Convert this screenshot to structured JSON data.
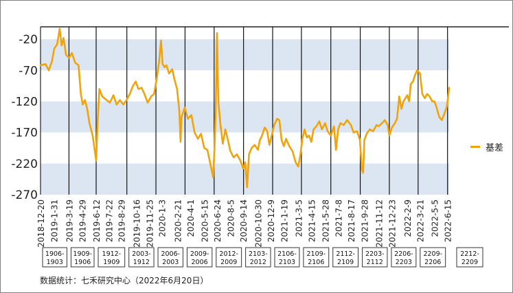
{
  "chart_data": {
    "type": "line",
    "series": [
      {
        "name": "基差",
        "color": "#F0A30A",
        "points": [
          [
            "2018-12-20",
            -62
          ],
          [
            "2019-01-05",
            -60
          ],
          [
            "2019-01-15",
            -70
          ],
          [
            "2019-01-25",
            -55
          ],
          [
            "2019-02-01",
            -35
          ],
          [
            "2019-02-10",
            -28
          ],
          [
            "2019-02-18",
            -3
          ],
          [
            "2019-02-24",
            -30
          ],
          [
            "2019-03-02",
            -18
          ],
          [
            "2019-03-10",
            -45
          ],
          [
            "2019-03-19",
            -50
          ],
          [
            "2019-03-28",
            -42
          ],
          [
            "2019-04-08",
            -58
          ],
          [
            "2019-04-18",
            -62
          ],
          [
            "2019-04-25",
            -108
          ],
          [
            "2019-05-01",
            -125
          ],
          [
            "2019-05-08",
            -118
          ],
          [
            "2019-05-15",
            -132
          ],
          [
            "2019-05-22",
            -155
          ],
          [
            "2019-06-01",
            -175
          ],
          [
            "2019-06-08",
            -200
          ],
          [
            "2019-06-12",
            -215
          ],
          [
            "2019-06-16",
            -158
          ],
          [
            "2019-06-22",
            -100
          ],
          [
            "2019-07-01",
            -112
          ],
          [
            "2019-07-15",
            -118
          ],
          [
            "2019-07-25",
            -122
          ],
          [
            "2019-08-05",
            -110
          ],
          [
            "2019-08-15",
            -125
          ],
          [
            "2019-08-25",
            -118
          ],
          [
            "2019-09-05",
            -125
          ],
          [
            "2019-09-15",
            -118
          ],
          [
            "2019-09-25",
            -108
          ],
          [
            "2019-10-05",
            -95
          ],
          [
            "2019-10-14",
            -88
          ],
          [
            "2019-10-22",
            -100
          ],
          [
            "2019-11-01",
            -98
          ],
          [
            "2019-11-10",
            -108
          ],
          [
            "2019-11-20",
            -122
          ],
          [
            "2019-12-01",
            -112
          ],
          [
            "2019-12-10",
            -108
          ],
          [
            "2019-12-18",
            -85
          ],
          [
            "2019-12-26",
            -55
          ],
          [
            "2020-01-01",
            -22
          ],
          [
            "2020-01-06",
            -60
          ],
          [
            "2020-01-12",
            -65
          ],
          [
            "2020-01-18",
            -62
          ],
          [
            "2020-01-26",
            -75
          ],
          [
            "2020-02-05",
            -68
          ],
          [
            "2020-02-12",
            -85
          ],
          [
            "2020-02-20",
            -100
          ],
          [
            "2020-02-27",
            -135
          ],
          [
            "2020-03-02",
            -185
          ],
          [
            "2020-03-05",
            -145
          ],
          [
            "2020-03-15",
            -130
          ],
          [
            "2020-03-25",
            -148
          ],
          [
            "2020-04-05",
            -142
          ],
          [
            "2020-04-15",
            -170
          ],
          [
            "2020-04-25",
            -180
          ],
          [
            "2020-05-05",
            -172
          ],
          [
            "2020-05-15",
            -195
          ],
          [
            "2020-05-25",
            -198
          ],
          [
            "2020-06-05",
            -225
          ],
          [
            "2020-06-12",
            -242
          ],
          [
            "2020-06-16",
            -196
          ],
          [
            "2020-06-20",
            -135
          ],
          [
            "2020-06-24",
            -10
          ],
          [
            "2020-06-28",
            -120
          ],
          [
            "2020-07-05",
            -158
          ],
          [
            "2020-07-12",
            -188
          ],
          [
            "2020-07-20",
            -165
          ],
          [
            "2020-07-28",
            -182
          ],
          [
            "2020-08-05",
            -200
          ],
          [
            "2020-08-15",
            -210
          ],
          [
            "2020-08-25",
            -205
          ],
          [
            "2020-09-05",
            -215
          ],
          [
            "2020-09-14",
            -228
          ],
          [
            "2020-09-20",
            -218
          ],
          [
            "2020-09-26",
            -258
          ],
          [
            "2020-10-02",
            -205
          ],
          [
            "2020-10-10",
            -195
          ],
          [
            "2020-10-20",
            -190
          ],
          [
            "2020-10-30",
            -198
          ],
          [
            "2020-11-05",
            -182
          ],
          [
            "2020-11-12",
            -175
          ],
          [
            "2020-11-20",
            -162
          ],
          [
            "2020-11-28",
            -168
          ],
          [
            "2020-12-05",
            -190
          ],
          [
            "2020-12-12",
            -175
          ],
          [
            "2020-12-20",
            -158
          ],
          [
            "2020-12-29",
            -148
          ],
          [
            "2021-01-05",
            -150
          ],
          [
            "2021-01-12",
            -182
          ],
          [
            "2021-01-19",
            -192
          ],
          [
            "2021-01-26",
            -180
          ],
          [
            "2021-02-05",
            -192
          ],
          [
            "2021-02-15",
            -200
          ],
          [
            "2021-02-25",
            -218
          ],
          [
            "2021-03-05",
            -225
          ],
          [
            "2021-03-12",
            -205
          ],
          [
            "2021-03-18",
            -180
          ],
          [
            "2021-03-25",
            -165
          ],
          [
            "2021-04-01",
            -178
          ],
          [
            "2021-04-08",
            -175
          ],
          [
            "2021-04-15",
            -185
          ],
          [
            "2021-04-22",
            -165
          ],
          [
            "2021-05-01",
            -160
          ],
          [
            "2021-05-10",
            -152
          ],
          [
            "2021-05-18",
            -165
          ],
          [
            "2021-05-28",
            -155
          ],
          [
            "2021-06-05",
            -168
          ],
          [
            "2021-06-15",
            -175
          ],
          [
            "2021-06-25",
            -160
          ],
          [
            "2021-07-01",
            -198
          ],
          [
            "2021-07-08",
            -165
          ],
          [
            "2021-07-15",
            -155
          ],
          [
            "2021-07-25",
            -158
          ],
          [
            "2021-08-05",
            -150
          ],
          [
            "2021-08-17",
            -158
          ],
          [
            "2021-08-25",
            -170
          ],
          [
            "2021-09-05",
            -168
          ],
          [
            "2021-09-14",
            -182
          ],
          [
            "2021-09-20",
            -230
          ],
          [
            "2021-09-24",
            -235
          ],
          [
            "2021-09-28",
            -182
          ],
          [
            "2021-10-05",
            -172
          ],
          [
            "2021-10-15",
            -165
          ],
          [
            "2021-10-25",
            -168
          ],
          [
            "2021-11-05",
            -158
          ],
          [
            "2021-11-12",
            -160
          ],
          [
            "2021-11-22",
            -155
          ],
          [
            "2021-12-01",
            -150
          ],
          [
            "2021-12-10",
            -158
          ],
          [
            "2021-12-15",
            -175
          ],
          [
            "2021-12-23",
            -162
          ],
          [
            "2022-01-01",
            -155
          ],
          [
            "2022-01-08",
            -148
          ],
          [
            "2022-01-15",
            -112
          ],
          [
            "2022-01-22",
            -132
          ],
          [
            "2022-01-28",
            -120
          ],
          [
            "2022-02-09",
            -110
          ],
          [
            "2022-02-15",
            -120
          ],
          [
            "2022-02-20",
            -92
          ],
          [
            "2022-02-27",
            -88
          ],
          [
            "2022-03-05",
            -78
          ],
          [
            "2022-03-12",
            -70
          ],
          [
            "2022-03-21",
            -75
          ],
          [
            "2022-03-28",
            -108
          ],
          [
            "2022-04-05",
            -115
          ],
          [
            "2022-04-12",
            -108
          ],
          [
            "2022-04-20",
            -112
          ],
          [
            "2022-04-28",
            -120
          ],
          [
            "2022-05-05",
            -120
          ],
          [
            "2022-05-12",
            -130
          ],
          [
            "2022-05-20",
            -145
          ],
          [
            "2022-05-28",
            -150
          ],
          [
            "2022-06-05",
            -140
          ],
          [
            "2022-06-12",
            -130
          ],
          [
            "2022-06-15",
            -120
          ],
          [
            "2022-06-20",
            -98
          ]
        ]
      }
    ],
    "x_tick_labels": [
      "2018-12-20",
      "2019-1-31",
      "2019-3-19",
      "2019-4-29",
      "2019-6-12",
      "2019-7-22",
      "2019-8-29",
      "2019-10-16",
      "2019-11-25",
      "2020-1-3",
      "2020-2-21",
      "2020-4-1",
      "2020-5-15",
      "2020-6-24",
      "2020-8-5",
      "2020-9-14",
      "2020-10-30",
      "2020-12-9",
      "2021-1-19",
      "2021-3-5",
      "2021-4-15",
      "2021-5-28",
      "2021-7-8",
      "2021-8-17",
      "2021-9-28",
      "2021-11-12",
      "2021-12-23",
      "2022-2-9",
      "2022-3-21",
      "2022-5-5",
      "2022-6-15"
    ],
    "x_range": [
      "2018-12-20",
      "2022-06-20"
    ],
    "y_ticks": [
      -20,
      -70,
      -120,
      -170,
      -220,
      -270
    ],
    "ylim": [
      -270,
      0
    ],
    "bands": [
      [
        -70,
        -20
      ],
      [
        -170,
        -120
      ],
      [
        -270,
        -220
      ]
    ],
    "band_color": "#DCE6F2",
    "contracts": [
      {
        "label": [
          "1906-",
          "1903"
        ],
        "start": "2018-12-20",
        "end": "2019-03-19"
      },
      {
        "label": [
          "1909-",
          "1906"
        ],
        "start": "2019-03-19",
        "end": "2019-06-12"
      },
      {
        "label": [
          "1912-",
          "1909"
        ],
        "start": "2019-06-12",
        "end": "2019-09-16"
      },
      {
        "label": [
          "2003-",
          "1912"
        ],
        "start": "2019-09-16",
        "end": "2019-12-16"
      },
      {
        "label": [
          "2006-",
          "2003"
        ],
        "start": "2019-12-16",
        "end": "2020-03-16"
      },
      {
        "label": [
          "2009-",
          "2006"
        ],
        "start": "2020-03-16",
        "end": "2020-06-15"
      },
      {
        "label": [
          "2012-",
          "2009"
        ],
        "start": "2020-06-15",
        "end": "2020-09-15"
      },
      {
        "label": [
          "2103-",
          "2012"
        ],
        "start": "2020-09-15",
        "end": "2020-12-15"
      },
      {
        "label": [
          "2106-",
          "2103"
        ],
        "start": "2020-12-15",
        "end": "2021-03-15"
      },
      {
        "label": [
          "2109-",
          "2106"
        ],
        "start": "2021-03-15",
        "end": "2021-06-15"
      },
      {
        "label": [
          "2112-",
          "2109"
        ],
        "start": "2021-06-15",
        "end": "2021-09-15"
      },
      {
        "label": [
          "2203-",
          "2112"
        ],
        "start": "2021-09-15",
        "end": "2021-12-15"
      },
      {
        "label": [
          "2206-",
          "2203"
        ],
        "start": "2021-12-15",
        "end": "2022-03-15"
      },
      {
        "label": [
          "2209-",
          "2206"
        ],
        "start": "2022-03-15",
        "end": "2022-06-15"
      },
      {
        "label": [
          "2212-",
          "2209"
        ],
        "start": "2022-06-15",
        "end": null
      }
    ],
    "legend": {
      "label": "基差",
      "position": "right"
    },
    "grid": false
  },
  "source_note": "数据统计：七禾研究中心（2022年6月20日）"
}
